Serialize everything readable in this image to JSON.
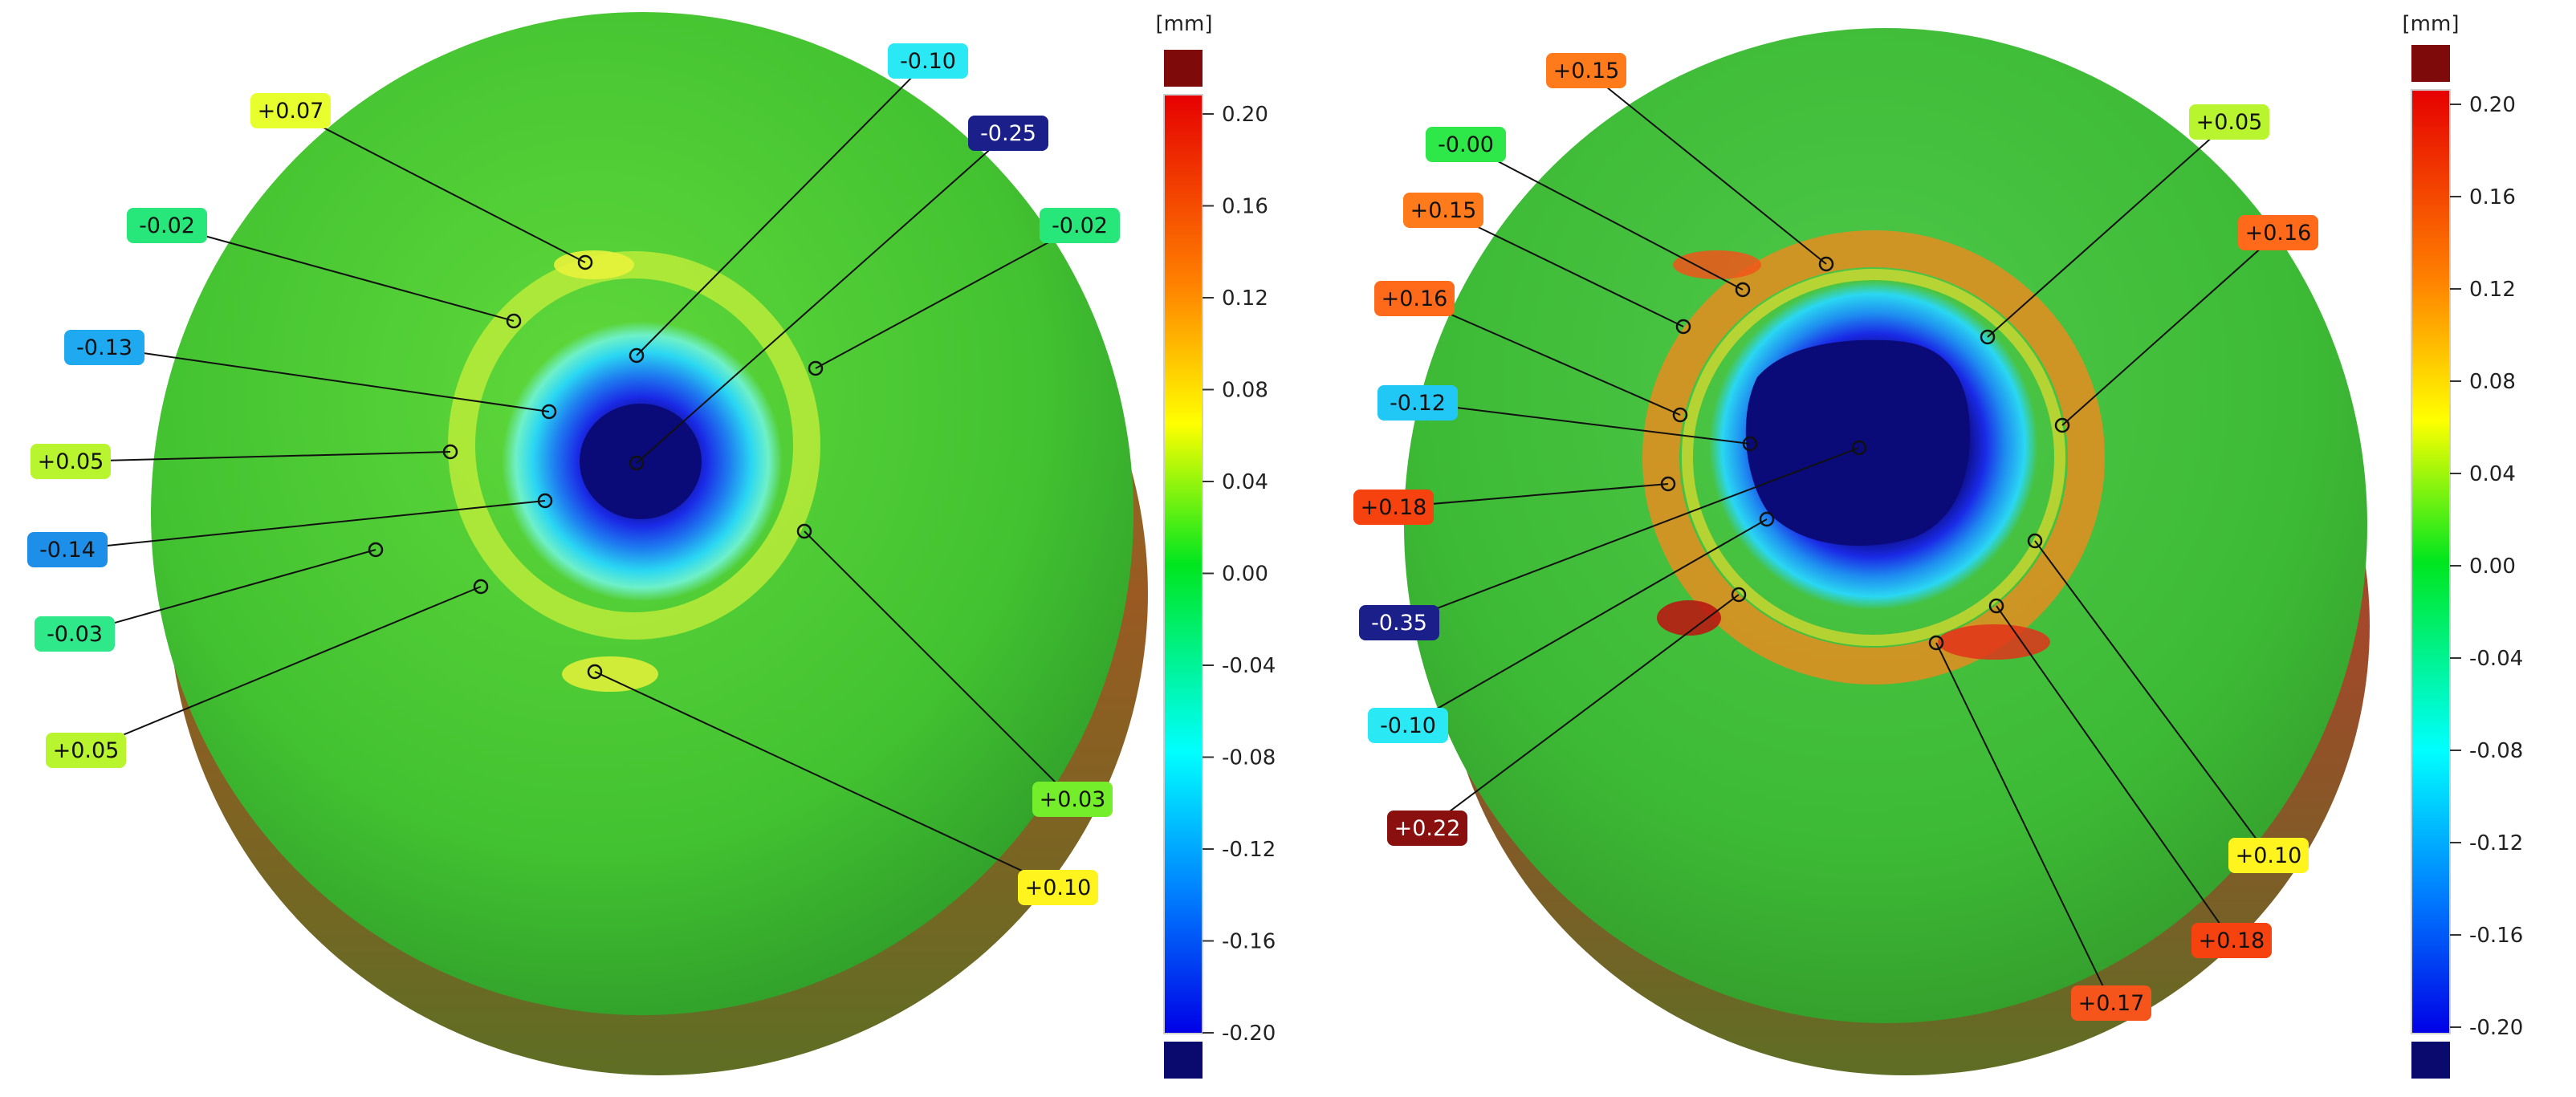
{
  "colors": {
    "scale_top": "#e60000",
    "scale_upper": "#ff8000",
    "scale_mid_high": "#ffff00",
    "scale_zero": "#00e61e",
    "scale_mid_low": "#00ffff",
    "scale_lower": "#0080ff",
    "scale_bottom": "#0000e6",
    "overflow_high": "#7f0a0a",
    "overflow_low": "#0a0a6e",
    "surface_green": "#3ec232",
    "dark_blue_label": "#1a1f8a"
  },
  "views": [
    {
      "id": "left",
      "unit": "[mm]",
      "scale_ticks": [
        "0.20",
        "0.16",
        "0.12",
        "0.08",
        "0.04",
        "0.00",
        "-0.04",
        "-0.08",
        "-0.12",
        "-0.16",
        "-0.20"
      ],
      "annotations": [
        {
          "text": "-0.10",
          "value": -0.1,
          "color": "#2be8f5"
        },
        {
          "text": "-0.25",
          "value": -0.25,
          "color": "#1a1f8a"
        },
        {
          "text": "+0.07",
          "value": 0.07,
          "color": "#e8ff2e"
        },
        {
          "text": "-0.02",
          "value": -0.02,
          "color": "#27e67a"
        },
        {
          "text": "-0.02",
          "value": -0.02,
          "color": "#27e67a"
        },
        {
          "text": "-0.13",
          "value": -0.13,
          "color": "#1ea9f0"
        },
        {
          "text": "+0.05",
          "value": 0.05,
          "color": "#b8f52e"
        },
        {
          "text": "-0.14",
          "value": -0.14,
          "color": "#1e8fe8"
        },
        {
          "text": "-0.03",
          "value": -0.03,
          "color": "#2ee88a"
        },
        {
          "text": "+0.05",
          "value": 0.05,
          "color": "#b8f52e"
        },
        {
          "text": "+0.03",
          "value": 0.03,
          "color": "#74ee2a"
        },
        {
          "text": "+0.10",
          "value": 0.1,
          "color": "#fff41e"
        }
      ]
    },
    {
      "id": "right",
      "unit": "[mm]",
      "scale_ticks": [
        "0.20",
        "0.16",
        "0.12",
        "0.08",
        "0.04",
        "0.00",
        "-0.04",
        "-0.08",
        "-0.12",
        "-0.16",
        "-0.20"
      ],
      "annotations": [
        {
          "text": "+0.15",
          "value": 0.15,
          "color": "#ff7a1a"
        },
        {
          "text": "-0.00",
          "value": 0.0,
          "color": "#2ee84a"
        },
        {
          "text": "+0.05",
          "value": 0.05,
          "color": "#b8f52e"
        },
        {
          "text": "+0.15",
          "value": 0.15,
          "color": "#ff7a1a"
        },
        {
          "text": "+0.16",
          "value": 0.16,
          "color": "#ff6a1a"
        },
        {
          "text": "+0.16",
          "value": 0.16,
          "color": "#ff6a1a"
        },
        {
          "text": "-0.12",
          "value": -0.12,
          "color": "#22c8f5"
        },
        {
          "text": "+0.18",
          "value": 0.18,
          "color": "#f5420f"
        },
        {
          "text": "-0.35",
          "value": -0.35,
          "color": "#1a1f8a"
        },
        {
          "text": "-0.10",
          "value": -0.1,
          "color": "#2be8f5"
        },
        {
          "text": "+0.22",
          "value": 0.22,
          "color": "#8a1010"
        },
        {
          "text": "+0.10",
          "value": 0.1,
          "color": "#fff41e"
        },
        {
          "text": "+0.18",
          "value": 0.18,
          "color": "#f5420f"
        },
        {
          "text": "+0.17",
          "value": 0.17,
          "color": "#f5541a"
        }
      ]
    }
  ]
}
